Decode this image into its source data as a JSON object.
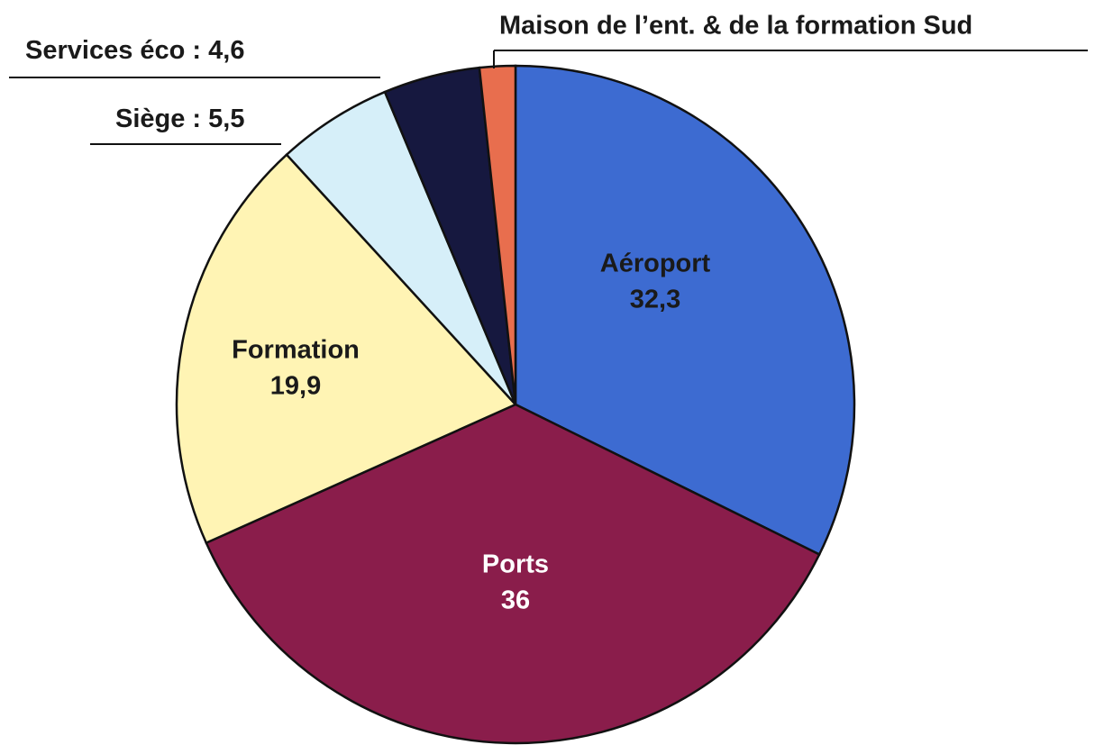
{
  "chart_data": {
    "type": "pie",
    "categories": [
      "Aéroport",
      "Ports",
      "Formation",
      "Siège",
      "Services éco",
      "Maison de l’ent. & de la formation Sud"
    ],
    "values": [
      32.3,
      36,
      19.9,
      5.5,
      4.6,
      1.7
    ],
    "value_labels": [
      "32,3",
      "36",
      "19,9",
      "5,5",
      "4,6",
      null
    ],
    "label_separator": " : ",
    "colors": [
      "#3d6bd1",
      "#8a1d4b",
      "#fff4b4",
      "#d6eff9",
      "#16183f",
      "#e86e4e"
    ],
    "start_angle": 0,
    "direction": "clockwise"
  }
}
